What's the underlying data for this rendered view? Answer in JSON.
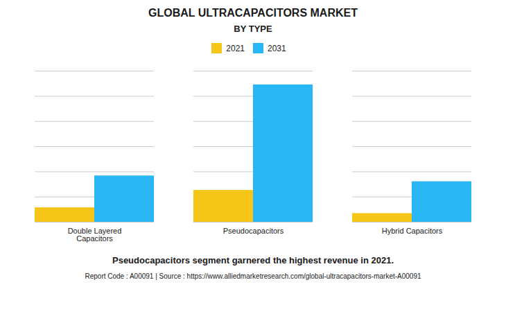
{
  "chart_data": {
    "type": "bar",
    "title": "GLOBAL ULTRACAPACITORS MARKET",
    "subtitle": "BY TYPE",
    "categories": [
      "Double Layered\nCapacitors",
      "Pseudocapacitors",
      "Hybrid Capacitors"
    ],
    "series": [
      {
        "name": "2021",
        "color": "#F5C518",
        "values": [
          1.0,
          2.2,
          0.6
        ]
      },
      {
        "name": "2031",
        "color": "#29B6F6",
        "values": [
          3.2,
          9.5,
          2.8
        ]
      }
    ],
    "ylim": [
      0,
      10.45
    ],
    "yticks": [
      0,
      1.7416666666666667,
      3.4833333333333334,
      5.225,
      6.966666666666667,
      8.708333333333334,
      10.45
    ],
    "grid": true,
    "legend": "top",
    "tick_labels": "x",
    "annotation": "Pseudocapacitors segment garnered the highest revenue in 2021.",
    "footer": "Report Code : A00091  |  Source : https://www.alliedmarketresearch.com/global-ultracapacitors-market-A00091"
  }
}
